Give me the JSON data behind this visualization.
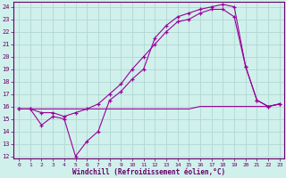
{
  "background_color": "#d0f0ec",
  "line_color": "#990099",
  "grid_color": "#b0d8d4",
  "xlabel": "Windchill (Refroidissement éolien,°C)",
  "xlim": [
    -0.5,
    23.4
  ],
  "ylim": [
    11.8,
    24.4
  ],
  "yticks": [
    12,
    13,
    14,
    15,
    16,
    17,
    18,
    19,
    20,
    21,
    22,
    23,
    24
  ],
  "xticks": [
    0,
    1,
    2,
    3,
    4,
    5,
    6,
    7,
    8,
    9,
    10,
    11,
    12,
    13,
    14,
    15,
    16,
    17,
    18,
    19,
    20,
    21,
    22,
    23
  ],
  "line1_x": [
    0,
    1,
    2,
    3,
    4,
    5,
    6,
    7,
    8,
    9,
    10,
    11,
    12,
    13,
    14,
    15,
    16,
    17,
    18,
    19,
    20,
    21,
    22,
    23
  ],
  "line1_y": [
    15.8,
    15.8,
    14.5,
    15.2,
    15.0,
    12.0,
    13.2,
    14.0,
    16.5,
    17.2,
    18.2,
    19.0,
    21.5,
    22.5,
    23.2,
    23.5,
    23.8,
    24.0,
    24.2,
    24.0,
    19.2,
    16.5,
    16.0,
    16.2
  ],
  "line2_x": [
    0,
    1,
    2,
    3,
    4,
    5,
    6,
    7,
    8,
    9,
    10,
    11,
    12,
    13,
    14,
    15,
    16,
    17,
    18,
    19,
    20,
    21,
    22,
    23
  ],
  "line2_y": [
    15.8,
    15.8,
    15.5,
    15.5,
    15.2,
    15.5,
    15.8,
    16.2,
    17.0,
    17.8,
    19.0,
    20.0,
    21.0,
    22.0,
    22.8,
    23.0,
    23.5,
    23.8,
    23.8,
    23.2,
    19.2,
    16.5,
    16.0,
    16.2
  ],
  "line3_x": [
    0,
    1,
    2,
    3,
    4,
    5,
    6,
    7,
    8,
    9,
    10,
    11,
    12,
    13,
    14,
    15,
    16,
    17,
    18,
    19,
    20,
    21,
    22,
    23
  ],
  "line3_y": [
    15.8,
    15.8,
    15.8,
    15.8,
    15.8,
    15.8,
    15.8,
    15.8,
    15.8,
    15.8,
    15.8,
    15.8,
    15.8,
    15.8,
    15.8,
    15.8,
    16.0,
    16.0,
    16.0,
    16.0,
    16.0,
    16.0,
    16.0,
    16.2
  ]
}
